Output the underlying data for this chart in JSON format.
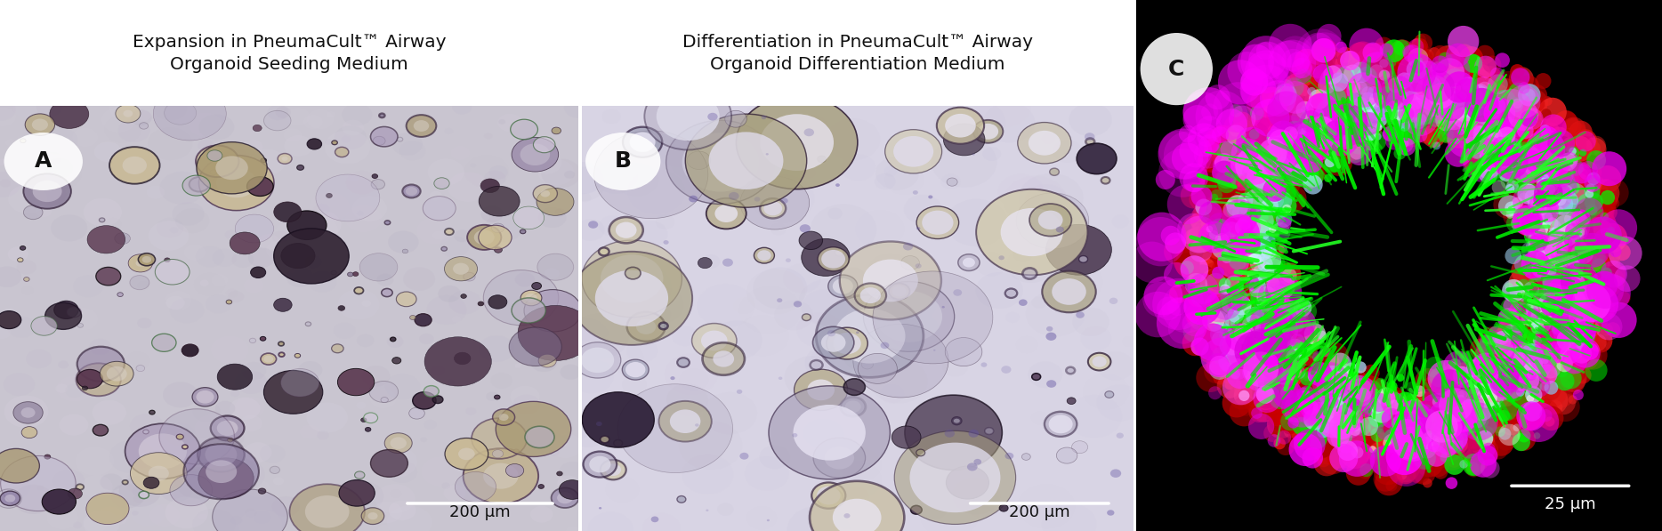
{
  "panel_A_title_line1": "Expansion in PneumaCult™ Airway",
  "panel_A_title_line2": "Organoid Seeding Medium",
  "panel_B_title_line1": "Differentiation in PneumaCult™ Airway",
  "panel_B_title_line2": "Organoid Differentiation Medium",
  "label_A": "A",
  "label_B": "B",
  "label_C": "C",
  "scale_A": "200 μm",
  "scale_B": "200 μm",
  "scale_C": "25 μm",
  "bg_color": "#ffffff",
  "title_fontsize": 14.5,
  "label_fontsize": 18,
  "scale_fontsize": 13,
  "fig_width": 18.68,
  "fig_height": 5.97
}
